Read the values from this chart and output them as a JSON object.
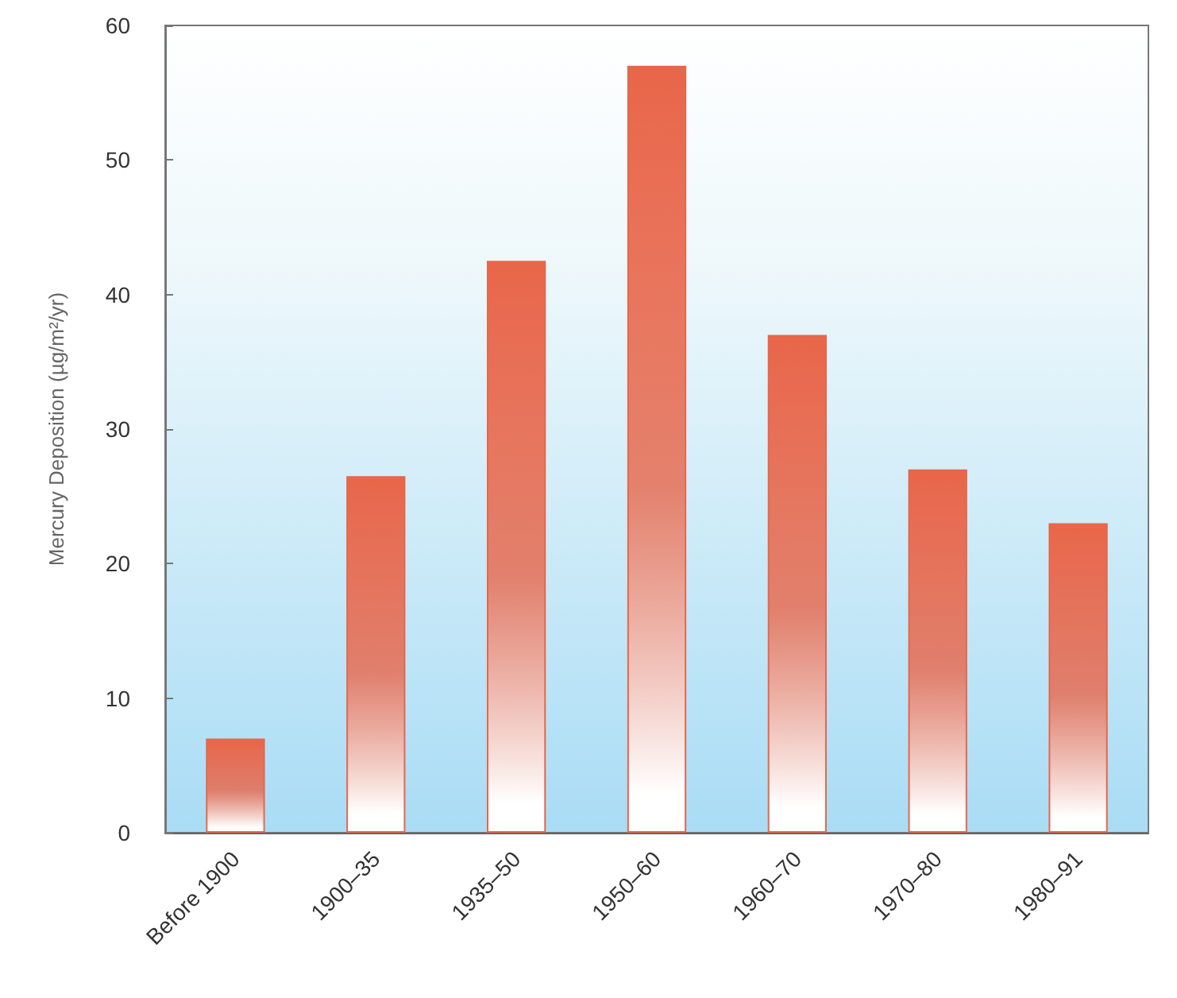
{
  "chart_data": {
    "type": "bar",
    "ylabel": "Mercury Deposition (µg/m²/yr)",
    "categories": [
      "Before 1900",
      "1900–35",
      "1935–50",
      "1950–60",
      "1960–70",
      "1970–80",
      "1980–91"
    ],
    "values": [
      7,
      26.5,
      42.5,
      57,
      37,
      27,
      23
    ],
    "color": "#e8664a",
    "ylim": [
      0,
      60
    ],
    "yticks": [
      0,
      10,
      20,
      30,
      40,
      50,
      60
    ],
    "grid": false
  }
}
